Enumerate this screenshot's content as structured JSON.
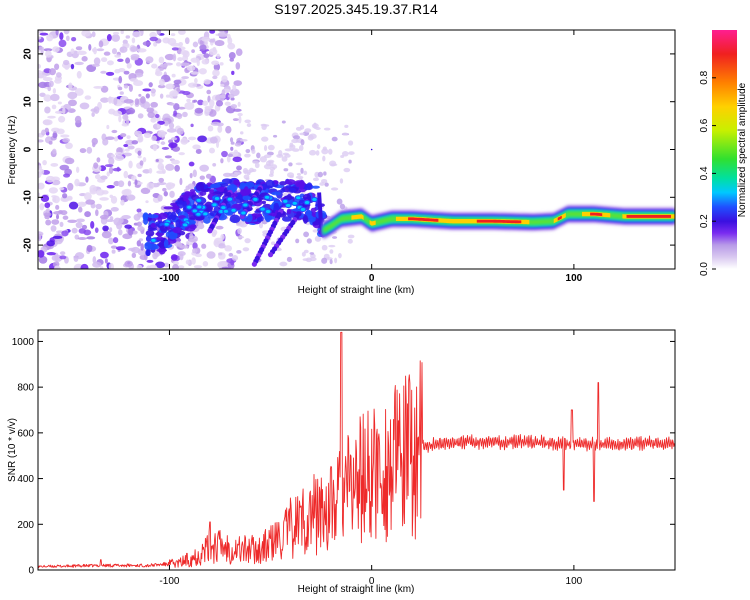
{
  "title": "S197.2025.345.19.37.R14",
  "chart_data": [
    {
      "type": "heatmap",
      "name": "spectrogram",
      "xlabel": "Height of straight line (km)",
      "ylabel": "Frequency (Hz)",
      "xlim": [
        -165,
        150
      ],
      "ylim": [
        -25,
        25
      ],
      "x_ticks": [
        -100,
        0,
        100
      ],
      "y_ticks": [
        -20,
        -10,
        0,
        10,
        20
      ],
      "ridge": [
        [
          -105,
          -18.5
        ],
        [
          -95,
          -15
        ],
        [
          -85,
          -12
        ],
        [
          -75,
          -11
        ],
        [
          -60,
          -12
        ],
        [
          -45,
          -11.5
        ],
        [
          -35,
          -11
        ],
        [
          -27,
          -12.5
        ],
        [
          -24,
          -17
        ],
        [
          -20,
          -16
        ],
        [
          -15,
          -14.5
        ],
        [
          -5,
          -14
        ],
        [
          0,
          -15.5
        ],
        [
          10,
          -14.5
        ],
        [
          20,
          -14.5
        ],
        [
          40,
          -15
        ],
        [
          60,
          -15
        ],
        [
          80,
          -15.2
        ],
        [
          90,
          -15
        ],
        [
          97,
          -13.5
        ],
        [
          110,
          -13.5
        ],
        [
          125,
          -14
        ],
        [
          150,
          -14
        ]
      ],
      "colorbar": {
        "label": "Normalized spectral amplitude",
        "ticks": [
          0.0,
          0.2,
          0.4,
          0.6,
          0.8
        ],
        "colors": [
          "#ffffff",
          "#d9c8f0",
          "#b89be8",
          "#7a2cf0",
          "#3a10e0",
          "#2050ff",
          "#00c8ff",
          "#00e0a0",
          "#30e030",
          "#c8f000",
          "#ffd000",
          "#ff8000",
          "#f02020",
          "#ff1e90"
        ]
      }
    },
    {
      "type": "line",
      "name": "snr",
      "xlabel": "Height of straight line (km)",
      "ylabel": "SNR (10 * v/v)",
      "xlim": [
        -165,
        150
      ],
      "ylim": [
        0,
        1050
      ],
      "x_ticks": [
        -100,
        0,
        100
      ],
      "y_ticks": [
        0,
        200,
        400,
        600,
        800,
        1000
      ],
      "color": "#ee2a2a",
      "envelope": [
        [
          -165,
          15
        ],
        [
          -130,
          20
        ],
        [
          -110,
          20
        ],
        [
          -95,
          30
        ],
        [
          -85,
          70
        ],
        [
          -78,
          110
        ],
        [
          -65,
          90
        ],
        [
          -55,
          90
        ],
        [
          -45,
          140
        ],
        [
          -38,
          200
        ],
        [
          -30,
          240
        ],
        [
          -20,
          270
        ],
        [
          -15,
          320
        ],
        [
          -5,
          400
        ],
        [
          5,
          430
        ],
        [
          15,
          480
        ],
        [
          25,
          540
        ],
        [
          40,
          560
        ],
        [
          60,
          560
        ],
        [
          80,
          560
        ],
        [
          100,
          550
        ],
        [
          120,
          550
        ],
        [
          150,
          555
        ]
      ],
      "spikes": [
        [
          -134,
          45
        ],
        [
          -80,
          210
        ],
        [
          -15,
          1040
        ],
        [
          95,
          350
        ],
        [
          99,
          700
        ],
        [
          110,
          300
        ],
        [
          112,
          820
        ]
      ]
    }
  ]
}
